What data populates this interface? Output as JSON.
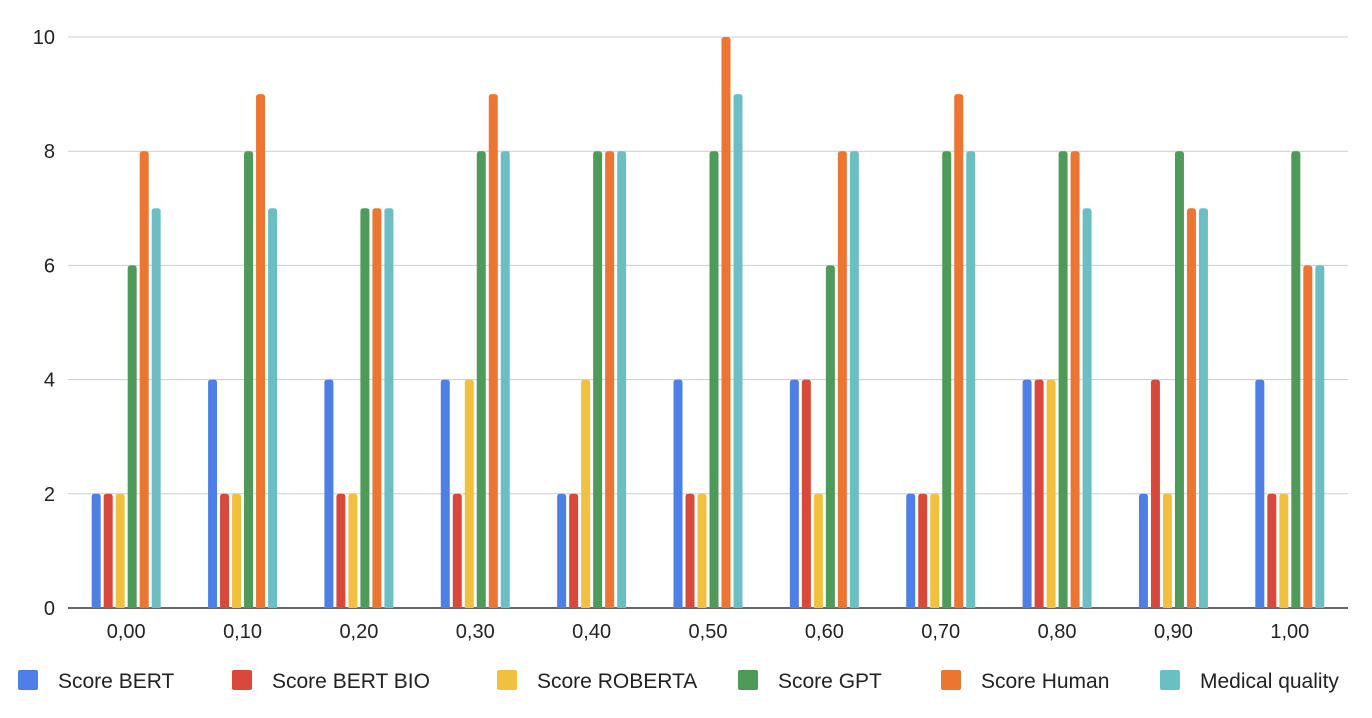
{
  "chart_data": {
    "type": "bar",
    "categories": [
      "0,00",
      "0,10",
      "0,20",
      "0,30",
      "0,40",
      "0,50",
      "0,60",
      "0,70",
      "0,80",
      "0,90",
      "1,00"
    ],
    "series": [
      {
        "name": "Score BERT",
        "color": "#4e7fe6",
        "values": [
          2,
          4,
          4,
          4,
          2,
          4,
          4,
          2,
          4,
          2,
          4
        ]
      },
      {
        "name": "Score BERT BIO",
        "color": "#d9493b",
        "values": [
          2,
          2,
          2,
          2,
          2,
          2,
          4,
          2,
          4,
          4,
          2
        ]
      },
      {
        "name": "Score ROBERTA",
        "color": "#f2c03f",
        "values": [
          2,
          2,
          2,
          4,
          4,
          2,
          2,
          2,
          4,
          2,
          2
        ]
      },
      {
        "name": "Score GPT",
        "color": "#4d9a59",
        "values": [
          6,
          8,
          7,
          8,
          8,
          8,
          6,
          8,
          8,
          8,
          8
        ]
      },
      {
        "name": "Score Human",
        "color": "#ec7532",
        "values": [
          8,
          9,
          7,
          9,
          8,
          10,
          8,
          9,
          8,
          7,
          6
        ]
      },
      {
        "name": "Medical quality",
        "color": "#6bbfc3",
        "values": [
          7,
          7,
          7,
          8,
          8,
          9,
          8,
          8,
          7,
          7,
          6
        ]
      }
    ],
    "yticks": [
      "0",
      "2",
      "4",
      "6",
      "8",
      "10"
    ],
    "ylim": [
      0,
      10
    ],
    "grid": true,
    "legend_position": "bottom"
  }
}
